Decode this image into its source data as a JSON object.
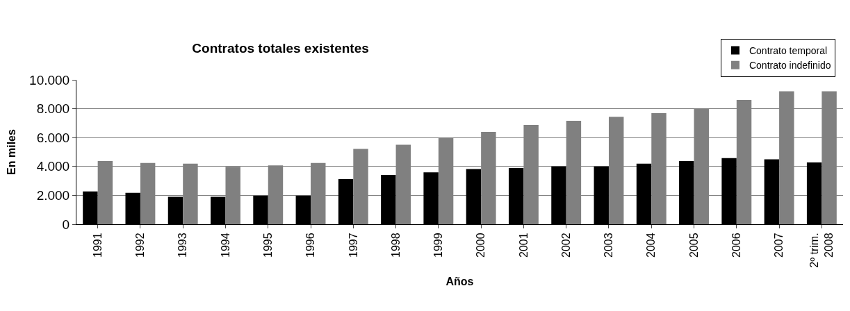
{
  "chart_data": {
    "type": "bar",
    "title": "Contratos totales existentes",
    "xlabel": "Años",
    "ylabel": "En miles",
    "categories": [
      "1991",
      "1992",
      "1993",
      "1994",
      "1995",
      "1996",
      "1997",
      "1998",
      "1999",
      "2000",
      "2001",
      "2002",
      "2003",
      "2004",
      "2005",
      "2006",
      "2007",
      "2º trim.\n2008"
    ],
    "series": [
      {
        "name": "Contrato temporal",
        "color": "#000000",
        "values": [
          2270,
          2170,
          1900,
          1900,
          1980,
          1980,
          3120,
          3410,
          3590,
          3820,
          3900,
          4000,
          4000,
          4200,
          4380,
          4580,
          4500,
          4280
        ]
      },
      {
        "name": "Contrato indefinido",
        "color": "#808080",
        "values": [
          4370,
          4240,
          4190,
          3980,
          4080,
          4240,
          5220,
          5510,
          5970,
          6400,
          6880,
          7160,
          7440,
          7690,
          8000,
          8600,
          9210,
          9210
        ]
      }
    ],
    "ylim": [
      0,
      10000
    ],
    "yticks": [
      {
        "value": 0,
        "label": "0"
      },
      {
        "value": 2000,
        "label": "2.000"
      },
      {
        "value": 4000,
        "label": "4.000"
      },
      {
        "value": 6000,
        "label": "6.000"
      },
      {
        "value": 8000,
        "label": "8.000"
      },
      {
        "value": 10000,
        "label": "10.000"
      }
    ],
    "grid": "y",
    "legend": "top right"
  }
}
